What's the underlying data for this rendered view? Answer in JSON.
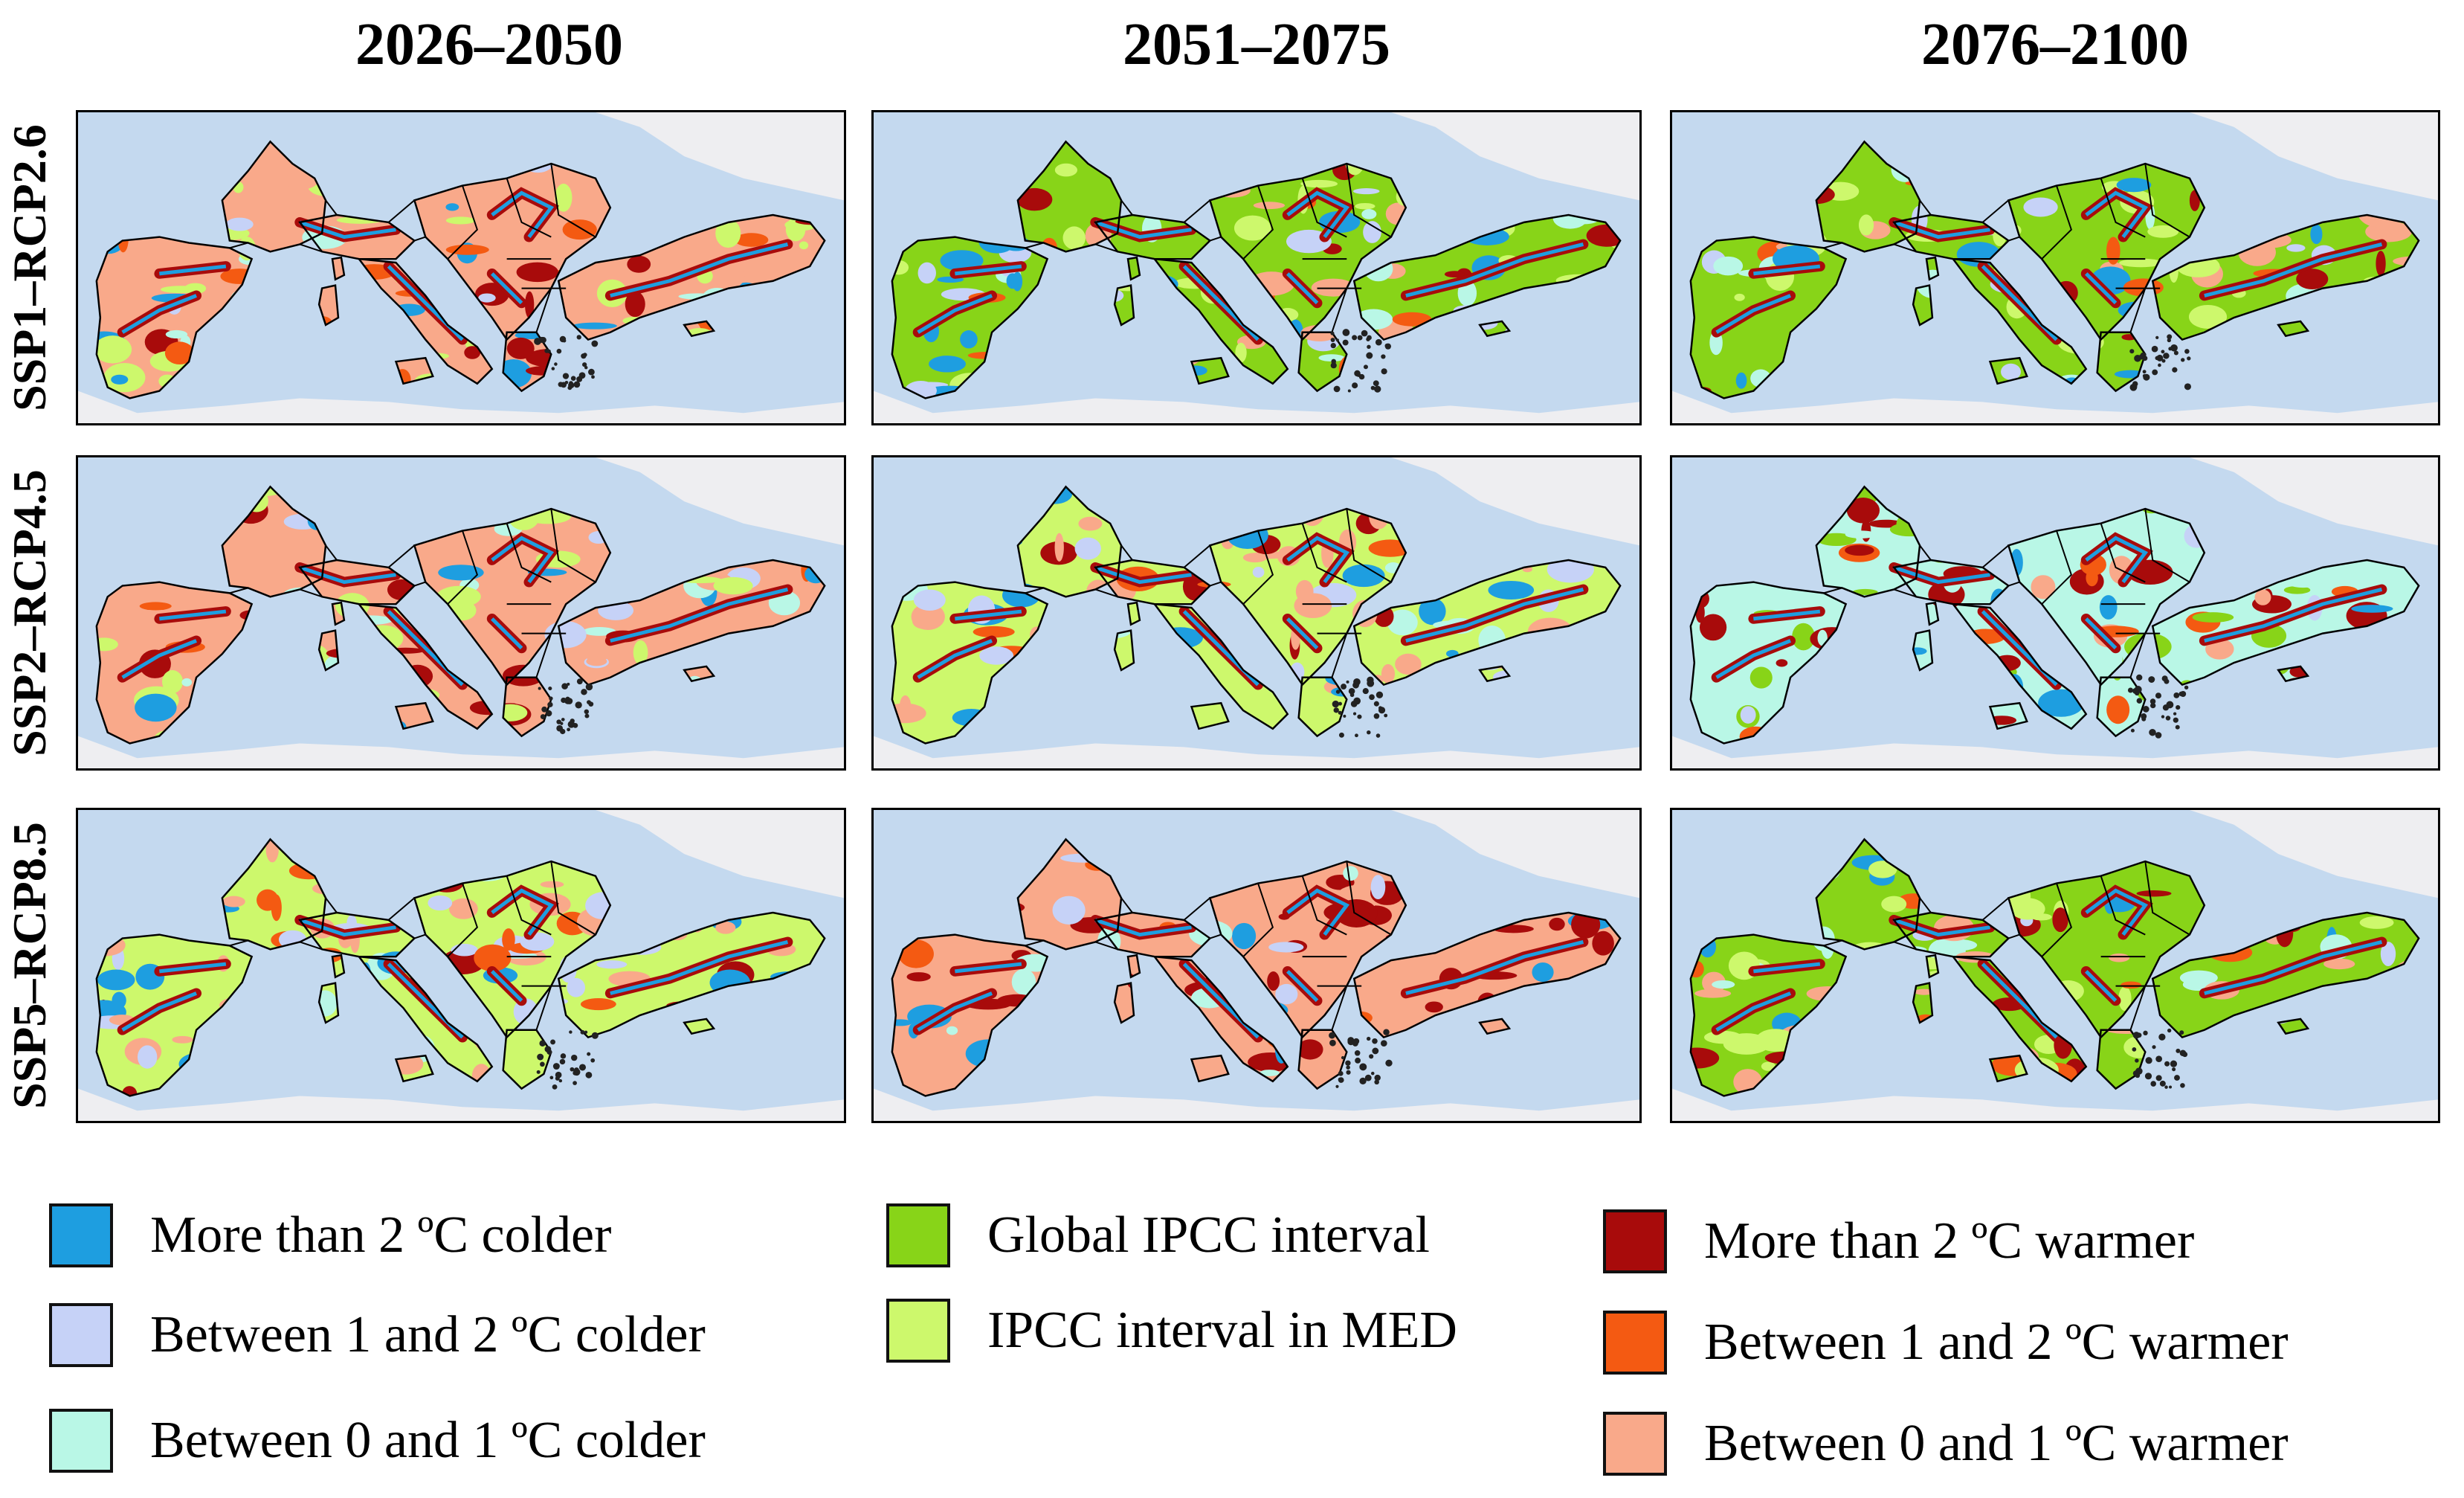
{
  "columns": [
    "2026–2050",
    "2051–2075",
    "2076–2100"
  ],
  "rows": [
    "SSP1–RCP2.6",
    "SSP2–RCP4.5",
    "SSP5–RCP8.5"
  ],
  "colors": {
    "sea": "#c4d9ef",
    "land_outside": "#eeeef1",
    "border": "#000000"
  },
  "legend": [
    {
      "label": "More than 2 ºC colder",
      "color": "#1e9ee0"
    },
    {
      "label": "Between 1 and 2 ºC colder",
      "color": "#c6d2f7"
    },
    {
      "label": "Between 0 and 1 ºC colder",
      "color": "#b9f7e6"
    },
    {
      "label": "Global IPCC interval",
      "color": "#88d418"
    },
    {
      "label": "IPCC interval in MED",
      "color": "#cdf86c"
    },
    {
      "label": "More than 2 ºC warmer",
      "color": "#a80b0b"
    },
    {
      "label": "Between 1 and 2 ºC warmer",
      "color": "#f45a12"
    },
    {
      "label": "Between 0 and 1 ºC warmer",
      "color": "#f9a98a"
    }
  ],
  "panels": [
    {
      "row": 0,
      "col": 0,
      "dominant": "#f9a98a",
      "secondary": "#cdf86c"
    },
    {
      "row": 0,
      "col": 1,
      "dominant": "#88d418",
      "secondary": "#cdf86c"
    },
    {
      "row": 0,
      "col": 2,
      "dominant": "#88d418",
      "secondary": "#cdf86c"
    },
    {
      "row": 1,
      "col": 0,
      "dominant": "#f9a98a",
      "secondary": "#cdf86c"
    },
    {
      "row": 1,
      "col": 1,
      "dominant": "#cdf86c",
      "secondary": "#f9a98a"
    },
    {
      "row": 1,
      "col": 2,
      "dominant": "#b9f7e6",
      "secondary": "#88d418"
    },
    {
      "row": 2,
      "col": 0,
      "dominant": "#cdf86c",
      "secondary": "#f9a98a"
    },
    {
      "row": 2,
      "col": 1,
      "dominant": "#f9a98a",
      "secondary": "#a80b0b"
    },
    {
      "row": 2,
      "col": 2,
      "dominant": "#88d418",
      "secondary": "#cdf86c"
    }
  ]
}
